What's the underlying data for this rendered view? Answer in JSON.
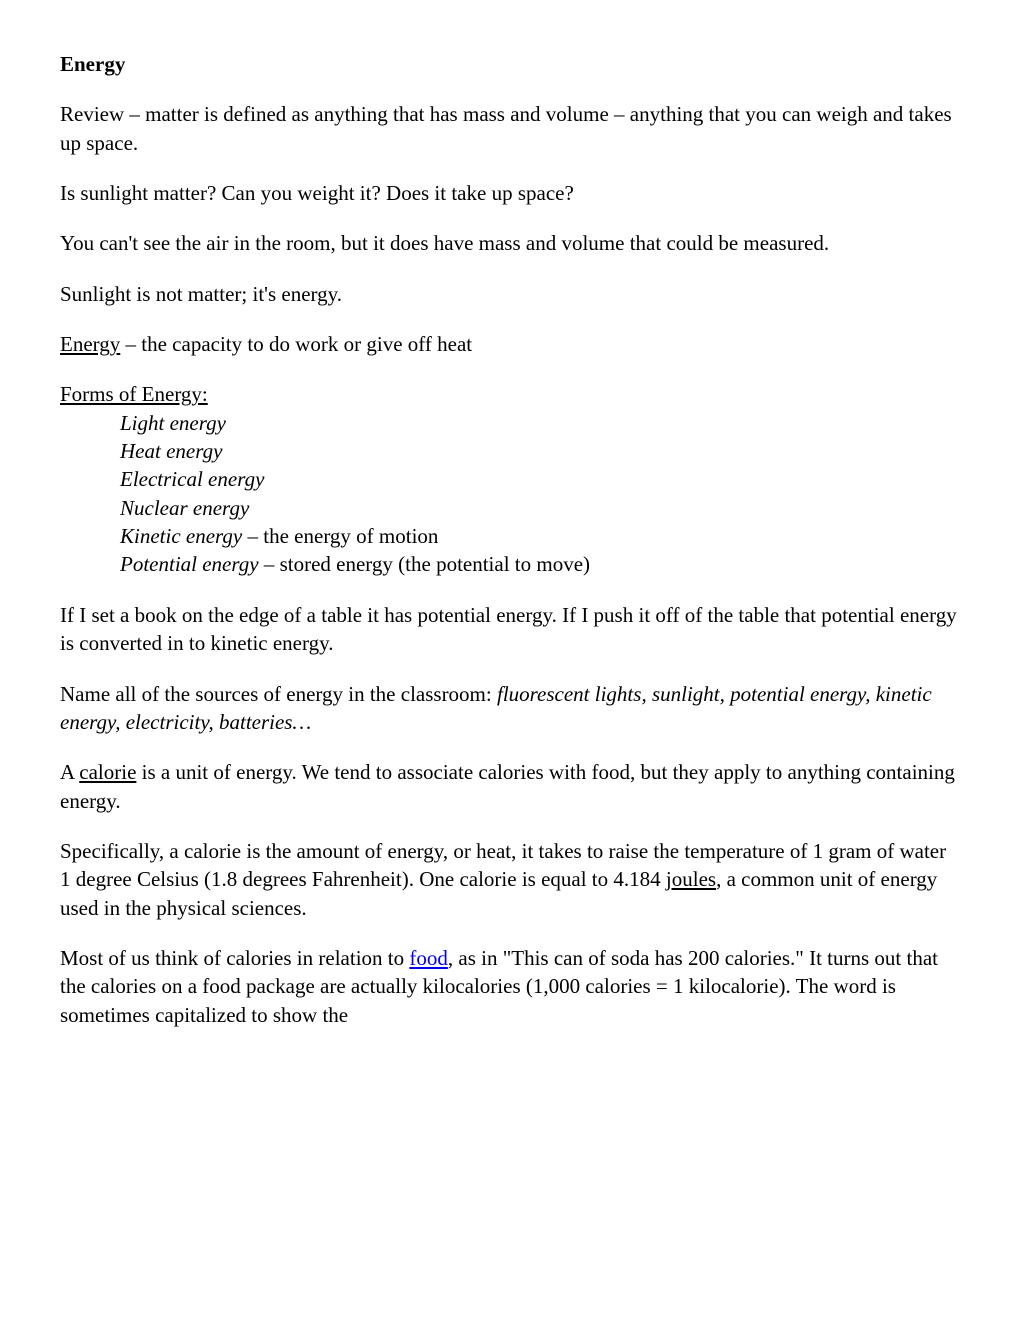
{
  "title": "Energy",
  "p1": "Review – matter is defined as anything that has mass and volume – anything that you can weigh and takes up space.",
  "p2": "Is sunlight matter? Can you weight it? Does it take up space?",
  "p3": "You can't see the air in the room, but it does have mass and volume that could be measured.",
  "p4": "Sunlight is not matter; it's energy.",
  "p5_term": "Energy",
  "p5_rest": " – the capacity to do work or give off heat",
  "forms_heading": "Forms of Energy:",
  "forms": {
    "f1": "Light energy",
    "f2": "Heat energy",
    "f3": "Electrical energy",
    "f4": "Nuclear energy",
    "f5a": "Kinetic energy",
    "f5b": " – the energy of motion",
    "f6a": "Potential energy",
    "f6b": " – stored energy (the potential to move)"
  },
  "p6": "If I set a book on the edge of a table it has potential energy. If I push it off of the table that potential energy is converted in to kinetic energy.",
  "p7a": "Name all of the sources of energy in the classroom:  ",
  "p7b": "fluorescent lights, sunlight, potential energy, kinetic energy, electricity, batteries…",
  "p8a": "A ",
  "p8_term": "calorie",
  "p8b": " is a unit of energy. We tend to associate calories with food, but they apply to anything containing energy.",
  "p9a": "Specifically, a calorie is the amount of energy, or heat, it takes to raise the temperature of 1 gram of water 1 degree Celsius (1.8 degrees Fahrenheit). One calorie is equal to 4.184 ",
  "p9_term": "joules",
  "p9b": ", a common unit of energy used in the physical sciences.",
  "p10a": "Most of us think of calories in relation to ",
  "p10_link": "food",
  "p10b": ", as in \"This can of soda has 200 calories.\" It turns out that the calories on a food package are actually kilocalories (1,000 calories = 1 kilocalorie). The word is sometimes capitalized to show the"
}
